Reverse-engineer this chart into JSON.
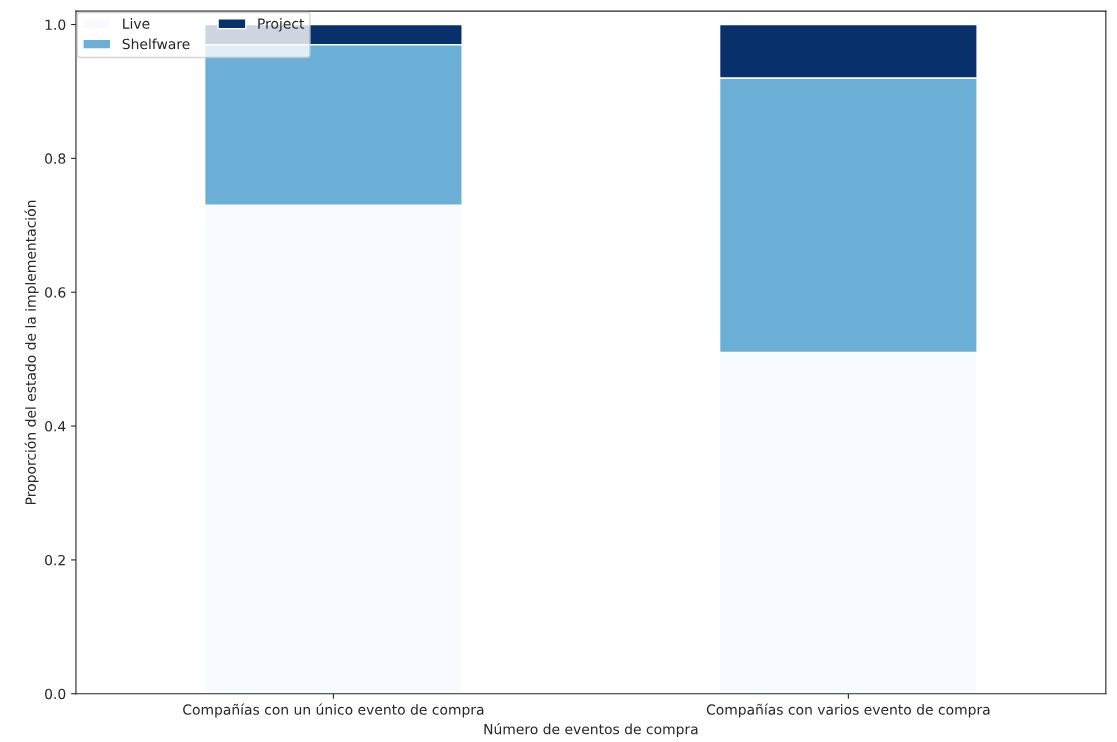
{
  "chart_data": {
    "type": "bar",
    "stacked": true,
    "xlabel": "Número de eventos de compra",
    "ylabel": "Proporción del estado de la implementación",
    "categories": [
      "Compañías con un único evento de compra",
      "Compañías con varios evento de compra"
    ],
    "series": [
      {
        "name": "Live",
        "color": "#f7fbff",
        "values": [
          0.73,
          0.51
        ]
      },
      {
        "name": "Shelfware",
        "color": "#6baed6",
        "values": [
          0.24,
          0.41
        ]
      },
      {
        "name": "Project",
        "color": "#08306b",
        "values": [
          0.03,
          0.08
        ]
      }
    ],
    "ylim": [
      0,
      1.02
    ],
    "yticks": [
      {
        "value": 0,
        "label": "0.0"
      },
      0.2,
      0.4,
      0.6,
      0.8,
      {
        "value": 1,
        "label": "1.0"
      }
    ],
    "legend": "top left",
    "grid": false
  }
}
